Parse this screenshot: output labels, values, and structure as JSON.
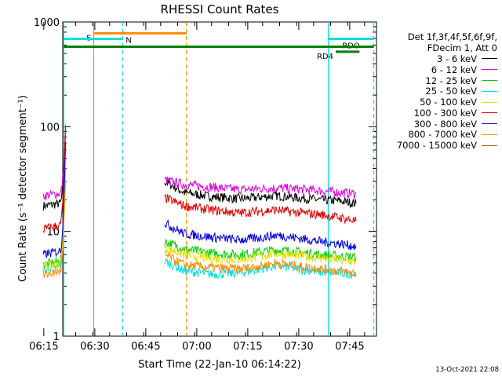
{
  "chart_data": {
    "type": "line",
    "title": "RHESSI Count Rates",
    "xlabel": "Start Time (22-Jan-10 06:14:22)",
    "ylabel": "Count Rate (s⁻¹ detector segment⁻¹)",
    "y_scale": "log",
    "ylim": [
      1,
      1000
    ],
    "xlim_minutes": [
      6.2,
      98.5
    ],
    "x_ticks": [
      {
        "label": "06:15",
        "minute": 15
      },
      {
        "label": "06:30",
        "minute": 30
      },
      {
        "label": "06:45",
        "minute": 45
      },
      {
        "label": "07:00",
        "minute": 60
      },
      {
        "label": "07:15",
        "minute": 75
      },
      {
        "label": "07:30",
        "minute": 90
      },
      {
        "label": "07:45",
        "minute": 105
      }
    ],
    "y_ticks": [
      {
        "label": "1",
        "value": 1
      },
      {
        "label": "10",
        "value": 10
      },
      {
        "label": "100",
        "value": 100
      },
      {
        "label": "1000",
        "value": 1000
      }
    ],
    "series": [
      {
        "name": "3 - 6 keV",
        "color": "#000000",
        "segments": [
          {
            "x": [
              0.5,
              5.4,
              7.0
            ],
            "y": [
              17.5,
              18.5,
              80
            ]
          },
          {
            "x": [
              36.2,
              42,
              50,
              58,
              63,
              69,
              75,
              82,
              88,
              92.5
            ],
            "y": [
              30,
              23.5,
              21.5,
              20.5,
              21,
              22,
              21,
              20,
              19.5,
              18.5
            ]
          }
        ]
      },
      {
        "name": "6 - 12 keV",
        "color": "#e000e0",
        "segments": [
          {
            "x": [
              0.5,
              5.4,
              7.0
            ],
            "y": [
              22,
              23,
              95
            ]
          },
          {
            "x": [
              36.2,
              42,
              50,
              58,
              63,
              69,
              75,
              82,
              88,
              92.5
            ],
            "y": [
              31,
              28,
              26.5,
              25,
              25.5,
              26,
              25.5,
              24.5,
              23.5,
              23
            ]
          }
        ]
      },
      {
        "name": "12 - 25 keV",
        "color": "#00d000",
        "segments": [
          {
            "x": [
              0.5,
              5.4,
              7.0
            ],
            "y": [
              4.8,
              5.2,
              105
            ]
          },
          {
            "x": [
              36.2,
              42,
              50,
              58,
              63,
              69,
              75,
              82,
              88,
              92.5
            ],
            "y": [
              8.0,
              6.8,
              6.2,
              6.0,
              6.3,
              6.7,
              6.4,
              6.0,
              5.8,
              5.7
            ]
          }
        ]
      },
      {
        "name": "25 - 50 keV",
        "color": "#00e0e0",
        "segments": [
          {
            "x": [
              0.5,
              5.4,
              7.0
            ],
            "y": [
              4.2,
              4.6,
              40
            ]
          },
          {
            "x": [
              36.2,
              42,
              50,
              58,
              63,
              69,
              75,
              82,
              88,
              92.5
            ],
            "y": [
              5.2,
              4.2,
              3.9,
              4.0,
              4.3,
              4.7,
              4.4,
              4.1,
              4.0,
              3.9
            ]
          }
        ]
      },
      {
        "name": "50 - 100 keV",
        "color": "#e0e000",
        "segments": [
          {
            "x": [
              0.5,
              5.4,
              7.0
            ],
            "y": [
              4.6,
              5.0,
              60
            ]
          },
          {
            "x": [
              36.2,
              42,
              50,
              58,
              63,
              69,
              75,
              82,
              88,
              92.5
            ],
            "y": [
              7.0,
              6.0,
              5.5,
              5.4,
              5.7,
              6.2,
              5.9,
              5.6,
              5.3,
              5.1
            ]
          }
        ]
      },
      {
        "name": "100 - 300 keV",
        "color": "#e00000",
        "segments": [
          {
            "x": [
              0.5,
              5.4,
              7.0
            ],
            "y": [
              10.5,
              11.5,
              100
            ]
          },
          {
            "x": [
              36.2,
              42,
              50,
              58,
              63,
              69,
              75,
              82,
              88,
              92.5
            ],
            "y": [
              21,
              17.5,
              16,
              15,
              15.5,
              16,
              15.2,
              14.5,
              13.5,
              12.5
            ]
          }
        ]
      },
      {
        "name": "300 - 800 keV",
        "color": "#0000e0",
        "segments": [
          {
            "x": [
              0.5,
              5.4,
              7.0
            ],
            "y": [
              6.0,
              6.5,
              70
            ]
          },
          {
            "x": [
              36.2,
              42,
              50,
              58,
              63,
              69,
              75,
              82,
              88,
              92.5
            ],
            "y": [
              12,
              9.5,
              8.8,
              8.3,
              8.6,
              9.2,
              8.7,
              8.0,
              7.6,
              7.2
            ]
          }
        ]
      },
      {
        "name": "800 - 7000 keV",
        "color": "#ff8c00",
        "segments": [
          {
            "x": [
              0.5,
              5.4,
              7.0
            ],
            "y": [
              3.8,
              4.2,
              30
            ]
          },
          {
            "x": [
              36.2,
              42,
              50,
              58,
              63,
              69,
              75,
              82,
              88,
              92.5
            ],
            "y": [
              6.0,
              4.8,
              4.5,
              4.4,
              4.6,
              5.0,
              4.7,
              4.4,
              4.2,
              4.0
            ]
          }
        ]
      },
      {
        "name": "7000 - 15000 keV",
        "color": "#b06000",
        "segments": []
      }
    ],
    "vertical_lines": [
      {
        "minute": 6.5,
        "color": "#00e0e0",
        "style": "solid"
      },
      {
        "minute": 15.3,
        "color": "#ff8c00",
        "style": "solid"
      },
      {
        "minute": 23.8,
        "color": "#00e0e0",
        "style": "dashed"
      },
      {
        "minute": 42.6,
        "color": "#ff8c00",
        "style": "dashed"
      },
      {
        "minute": 84.3,
        "color": "#00e0e0",
        "style": "solid"
      },
      {
        "minute": 97.7,
        "color": "#00e0e0",
        "style": "dashed"
      }
    ],
    "state_bars": [
      {
        "label": "S",
        "color": "#ff8c00",
        "from_minute": 15.3,
        "to_minute": 42.6,
        "level": 780,
        "label_at": "left"
      },
      {
        "label": "N",
        "color": "#00e0e0",
        "from_minute": 6.5,
        "to_minute": 23.8,
        "level": 690,
        "label_at": "right"
      },
      {
        "label": "RDO",
        "color": "#00e0e0",
        "from_minute": 84.3,
        "to_minute": 97.7,
        "level": 690,
        "label_at": "below"
      },
      {
        "label": "",
        "color": "#008000",
        "from_minute": 6.5,
        "to_minute": 97.7,
        "level": 580,
        "label_at": "none"
      },
      {
        "label": "RD4",
        "color": "#008000",
        "from_minute": 86.5,
        "to_minute": 93.5,
        "level": 520,
        "label_at": "left"
      }
    ]
  },
  "legend": {
    "detector_header": "Det 1f,3f,4f,5f,6f,9f,",
    "decim_header": "FDecim 1, Att 0"
  },
  "timestamp": "13-Oct-2021 22:08"
}
